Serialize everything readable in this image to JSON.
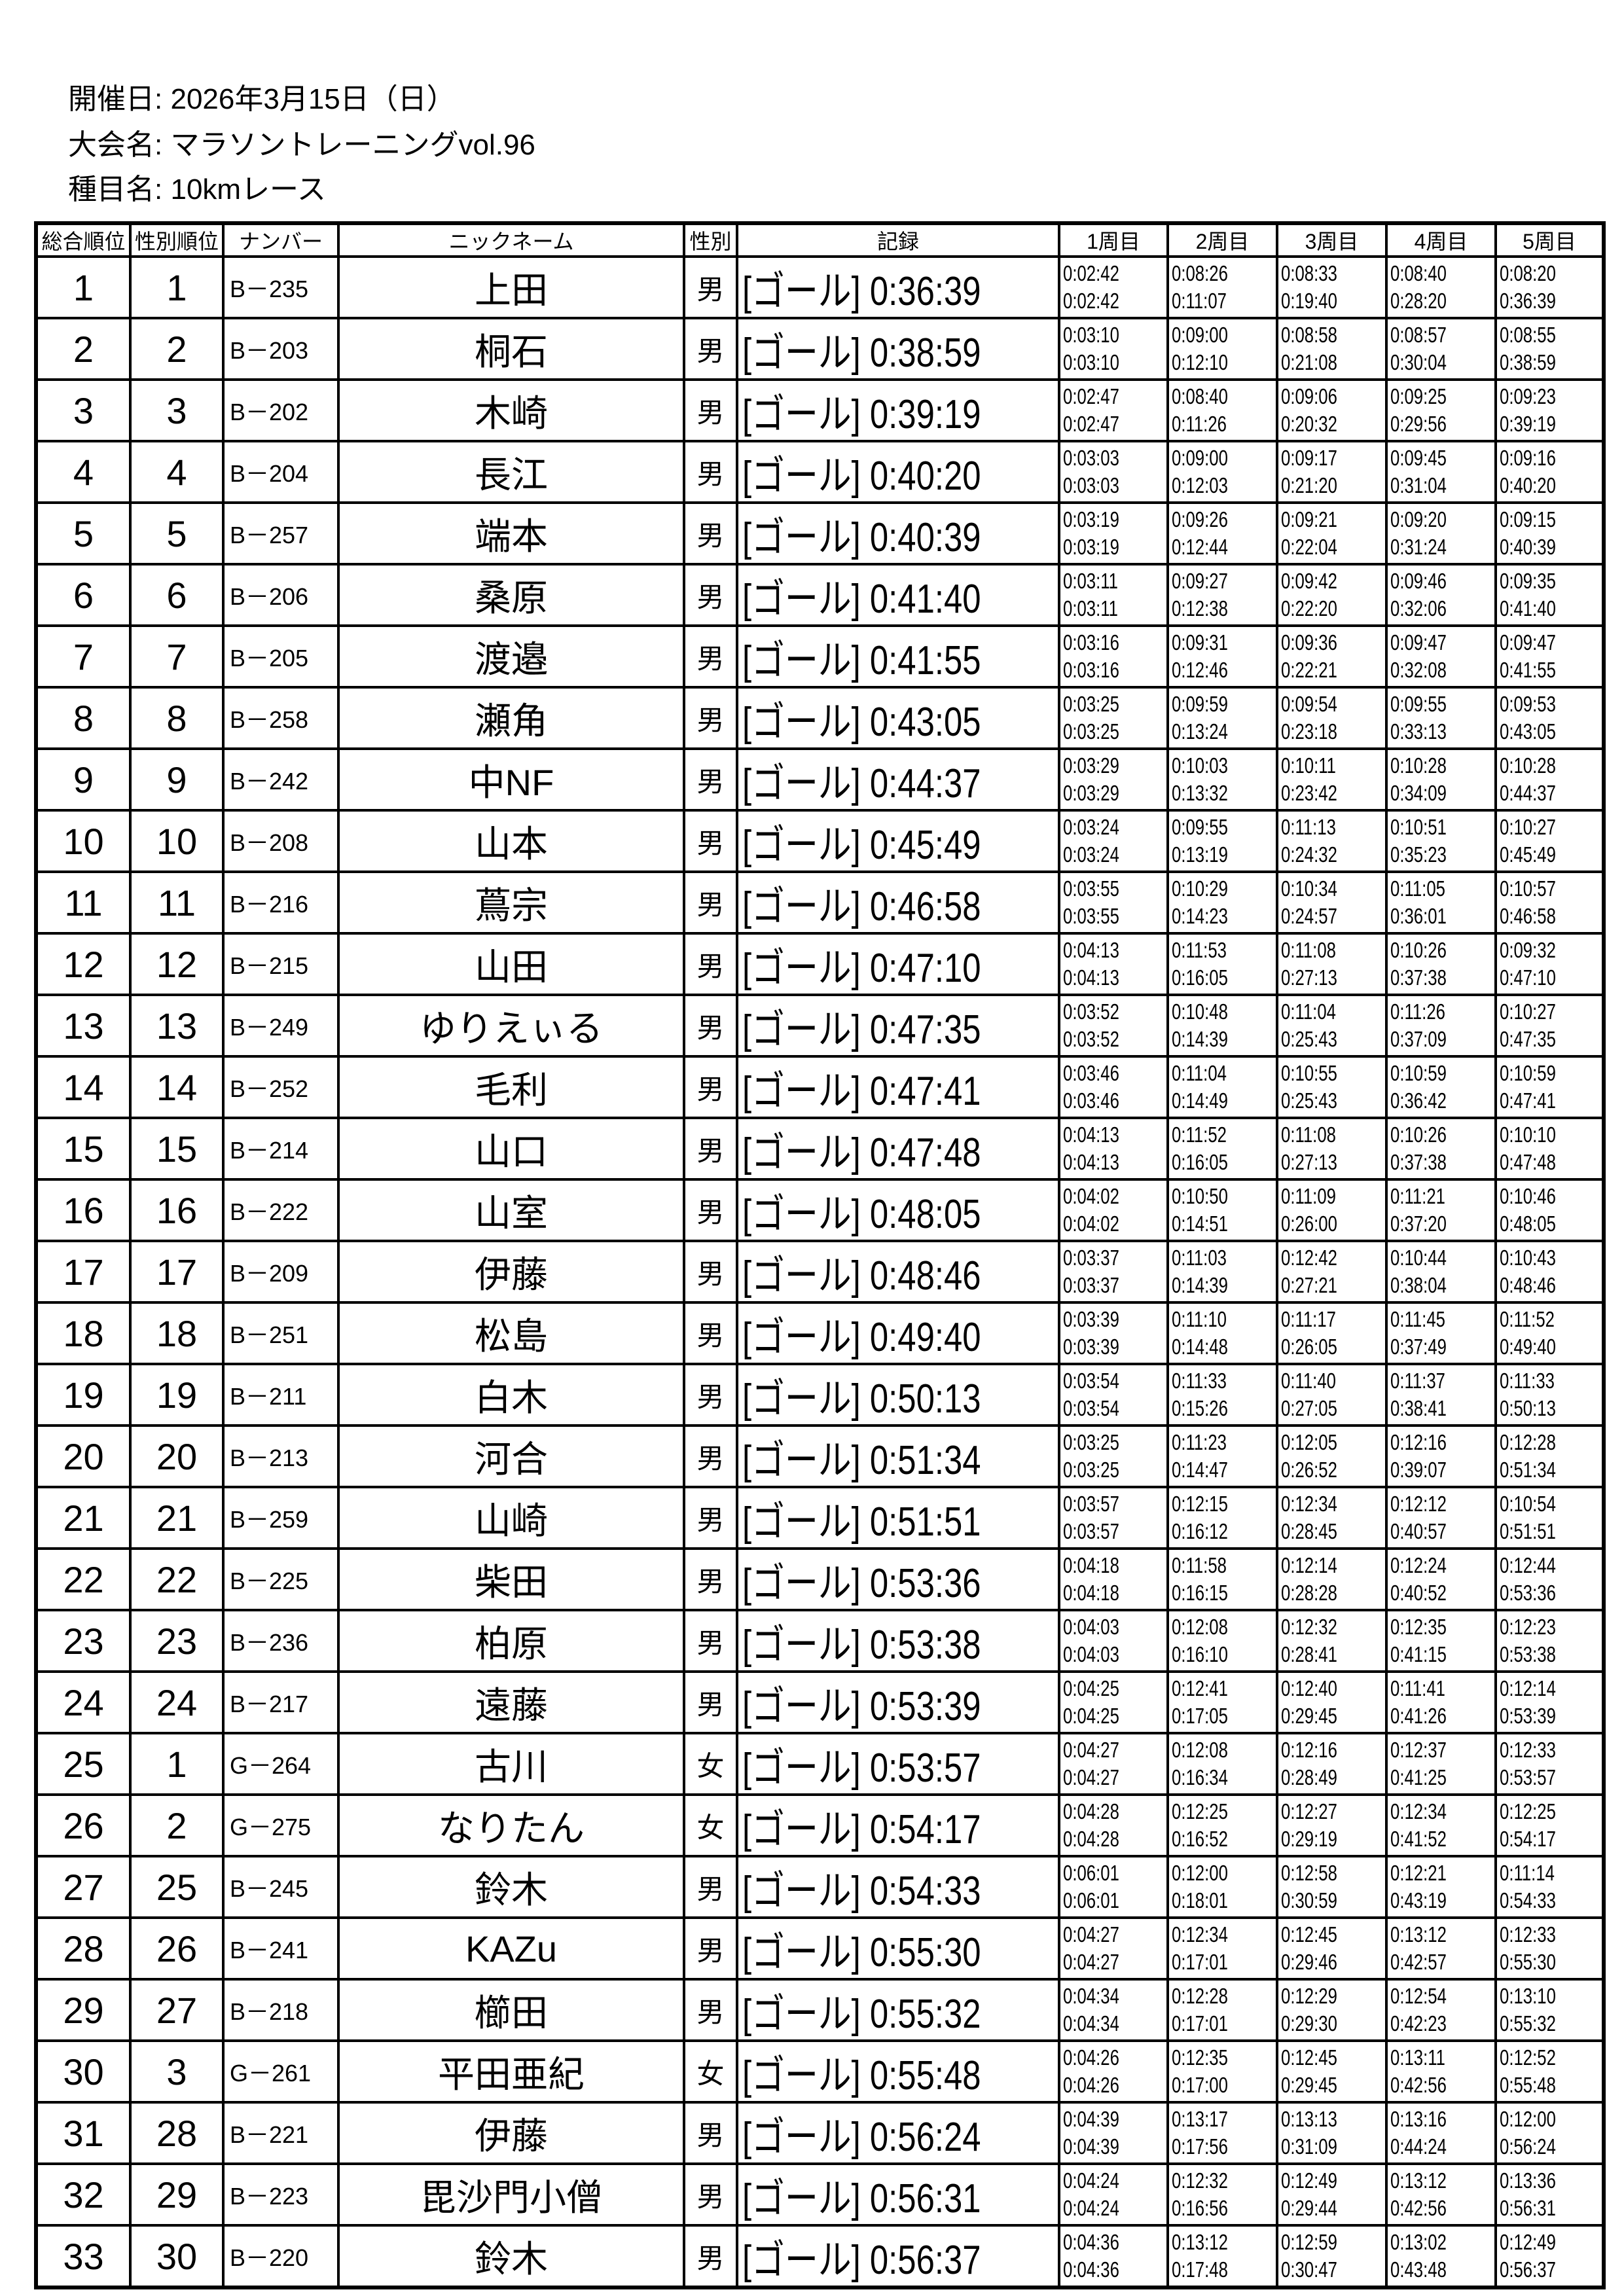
{
  "header": {
    "date_label": "開催日:",
    "date_value": "2026年3月15日（日）",
    "event_label": "大会名:",
    "event_value": "マラソントレーニングvol.96",
    "category_label": "種目名:",
    "category_value": "10kmレース"
  },
  "columns": [
    "総合順位",
    "性別順位",
    "ナンバー",
    "ニックネーム",
    "性別",
    "記録",
    "1周目",
    "2周目",
    "3周目",
    "4周目",
    "5周目"
  ],
  "goal_status": "[ゴール]",
  "rows": [
    {
      "overall": "1",
      "gender_rank": "1",
      "bib": "B－235",
      "name": "上田",
      "sex": "男",
      "time": "0:36:39",
      "laps": [
        [
          "0:02:42",
          "0:02:42"
        ],
        [
          "0:08:26",
          "0:11:07"
        ],
        [
          "0:08:33",
          "0:19:40"
        ],
        [
          "0:08:40",
          "0:28:20"
        ],
        [
          "0:08:20",
          "0:36:39"
        ]
      ]
    },
    {
      "overall": "2",
      "gender_rank": "2",
      "bib": "B－203",
      "name": "桐石",
      "sex": "男",
      "time": "0:38:59",
      "laps": [
        [
          "0:03:10",
          "0:03:10"
        ],
        [
          "0:09:00",
          "0:12:10"
        ],
        [
          "0:08:58",
          "0:21:08"
        ],
        [
          "0:08:57",
          "0:30:04"
        ],
        [
          "0:08:55",
          "0:38:59"
        ]
      ]
    },
    {
      "overall": "3",
      "gender_rank": "3",
      "bib": "B－202",
      "name": "木崎",
      "sex": "男",
      "time": "0:39:19",
      "laps": [
        [
          "0:02:47",
          "0:02:47"
        ],
        [
          "0:08:40",
          "0:11:26"
        ],
        [
          "0:09:06",
          "0:20:32"
        ],
        [
          "0:09:25",
          "0:29:56"
        ],
        [
          "0:09:23",
          "0:39:19"
        ]
      ]
    },
    {
      "overall": "4",
      "gender_rank": "4",
      "bib": "B－204",
      "name": "長江",
      "sex": "男",
      "time": "0:40:20",
      "laps": [
        [
          "0:03:03",
          "0:03:03"
        ],
        [
          "0:09:00",
          "0:12:03"
        ],
        [
          "0:09:17",
          "0:21:20"
        ],
        [
          "0:09:45",
          "0:31:04"
        ],
        [
          "0:09:16",
          "0:40:20"
        ]
      ]
    },
    {
      "overall": "5",
      "gender_rank": "5",
      "bib": "B－257",
      "name": "端本",
      "sex": "男",
      "time": "0:40:39",
      "laps": [
        [
          "0:03:19",
          "0:03:19"
        ],
        [
          "0:09:26",
          "0:12:44"
        ],
        [
          "0:09:21",
          "0:22:04"
        ],
        [
          "0:09:20",
          "0:31:24"
        ],
        [
          "0:09:15",
          "0:40:39"
        ]
      ]
    },
    {
      "overall": "6",
      "gender_rank": "6",
      "bib": "B－206",
      "name": "桑原",
      "sex": "男",
      "time": "0:41:40",
      "laps": [
        [
          "0:03:11",
          "0:03:11"
        ],
        [
          "0:09:27",
          "0:12:38"
        ],
        [
          "0:09:42",
          "0:22:20"
        ],
        [
          "0:09:46",
          "0:32:06"
        ],
        [
          "0:09:35",
          "0:41:40"
        ]
      ]
    },
    {
      "overall": "7",
      "gender_rank": "7",
      "bib": "B－205",
      "name": "渡邉",
      "sex": "男",
      "time": "0:41:55",
      "laps": [
        [
          "0:03:16",
          "0:03:16"
        ],
        [
          "0:09:31",
          "0:12:46"
        ],
        [
          "0:09:36",
          "0:22:21"
        ],
        [
          "0:09:47",
          "0:32:08"
        ],
        [
          "0:09:47",
          "0:41:55"
        ]
      ]
    },
    {
      "overall": "8",
      "gender_rank": "8",
      "bib": "B－258",
      "name": "瀬角",
      "sex": "男",
      "time": "0:43:05",
      "laps": [
        [
          "0:03:25",
          "0:03:25"
        ],
        [
          "0:09:59",
          "0:13:24"
        ],
        [
          "0:09:54",
          "0:23:18"
        ],
        [
          "0:09:55",
          "0:33:13"
        ],
        [
          "0:09:53",
          "0:43:05"
        ]
      ]
    },
    {
      "overall": "9",
      "gender_rank": "9",
      "bib": "B－242",
      "name": "中NF",
      "sex": "男",
      "time": "0:44:37",
      "laps": [
        [
          "0:03:29",
          "0:03:29"
        ],
        [
          "0:10:03",
          "0:13:32"
        ],
        [
          "0:10:11",
          "0:23:42"
        ],
        [
          "0:10:28",
          "0:34:09"
        ],
        [
          "0:10:28",
          "0:44:37"
        ]
      ]
    },
    {
      "overall": "10",
      "gender_rank": "10",
      "bib": "B－208",
      "name": "山本",
      "sex": "男",
      "time": "0:45:49",
      "laps": [
        [
          "0:03:24",
          "0:03:24"
        ],
        [
          "0:09:55",
          "0:13:19"
        ],
        [
          "0:11:13",
          "0:24:32"
        ],
        [
          "0:10:51",
          "0:35:23"
        ],
        [
          "0:10:27",
          "0:45:49"
        ]
      ]
    },
    {
      "overall": "11",
      "gender_rank": "11",
      "bib": "B－216",
      "name": "蔦宗",
      "sex": "男",
      "time": "0:46:58",
      "laps": [
        [
          "0:03:55",
          "0:03:55"
        ],
        [
          "0:10:29",
          "0:14:23"
        ],
        [
          "0:10:34",
          "0:24:57"
        ],
        [
          "0:11:05",
          "0:36:01"
        ],
        [
          "0:10:57",
          "0:46:58"
        ]
      ]
    },
    {
      "overall": "12",
      "gender_rank": "12",
      "bib": "B－215",
      "name": "山田",
      "sex": "男",
      "time": "0:47:10",
      "laps": [
        [
          "0:04:13",
          "0:04:13"
        ],
        [
          "0:11:53",
          "0:16:05"
        ],
        [
          "0:11:08",
          "0:27:13"
        ],
        [
          "0:10:26",
          "0:37:38"
        ],
        [
          "0:09:32",
          "0:47:10"
        ]
      ]
    },
    {
      "overall": "13",
      "gender_rank": "13",
      "bib": "B－249",
      "name": "ゆりえぃる",
      "sex": "男",
      "time": "0:47:35",
      "laps": [
        [
          "0:03:52",
          "0:03:52"
        ],
        [
          "0:10:48",
          "0:14:39"
        ],
        [
          "0:11:04",
          "0:25:43"
        ],
        [
          "0:11:26",
          "0:37:09"
        ],
        [
          "0:10:27",
          "0:47:35"
        ]
      ]
    },
    {
      "overall": "14",
      "gender_rank": "14",
      "bib": "B－252",
      "name": "毛利",
      "sex": "男",
      "time": "0:47:41",
      "laps": [
        [
          "0:03:46",
          "0:03:46"
        ],
        [
          "0:11:04",
          "0:14:49"
        ],
        [
          "0:10:55",
          "0:25:43"
        ],
        [
          "0:10:59",
          "0:36:42"
        ],
        [
          "0:10:59",
          "0:47:41"
        ]
      ]
    },
    {
      "overall": "15",
      "gender_rank": "15",
      "bib": "B－214",
      "name": "山口",
      "sex": "男",
      "time": "0:47:48",
      "laps": [
        [
          "0:04:13",
          "0:04:13"
        ],
        [
          "0:11:52",
          "0:16:05"
        ],
        [
          "0:11:08",
          "0:27:13"
        ],
        [
          "0:10:26",
          "0:37:38"
        ],
        [
          "0:10:10",
          "0:47:48"
        ]
      ]
    },
    {
      "overall": "16",
      "gender_rank": "16",
      "bib": "B－222",
      "name": "山室",
      "sex": "男",
      "time": "0:48:05",
      "laps": [
        [
          "0:04:02",
          "0:04:02"
        ],
        [
          "0:10:50",
          "0:14:51"
        ],
        [
          "0:11:09",
          "0:26:00"
        ],
        [
          "0:11:21",
          "0:37:20"
        ],
        [
          "0:10:46",
          "0:48:05"
        ]
      ]
    },
    {
      "overall": "17",
      "gender_rank": "17",
      "bib": "B－209",
      "name": "伊藤",
      "sex": "男",
      "time": "0:48:46",
      "laps": [
        [
          "0:03:37",
          "0:03:37"
        ],
        [
          "0:11:03",
          "0:14:39"
        ],
        [
          "0:12:42",
          "0:27:21"
        ],
        [
          "0:10:44",
          "0:38:04"
        ],
        [
          "0:10:43",
          "0:48:46"
        ]
      ]
    },
    {
      "overall": "18",
      "gender_rank": "18",
      "bib": "B－251",
      "name": "松島",
      "sex": "男",
      "time": "0:49:40",
      "laps": [
        [
          "0:03:39",
          "0:03:39"
        ],
        [
          "0:11:10",
          "0:14:48"
        ],
        [
          "0:11:17",
          "0:26:05"
        ],
        [
          "0:11:45",
          "0:37:49"
        ],
        [
          "0:11:52",
          "0:49:40"
        ]
      ]
    },
    {
      "overall": "19",
      "gender_rank": "19",
      "bib": "B－211",
      "name": "白木",
      "sex": "男",
      "time": "0:50:13",
      "laps": [
        [
          "0:03:54",
          "0:03:54"
        ],
        [
          "0:11:33",
          "0:15:26"
        ],
        [
          "0:11:40",
          "0:27:05"
        ],
        [
          "0:11:37",
          "0:38:41"
        ],
        [
          "0:11:33",
          "0:50:13"
        ]
      ]
    },
    {
      "overall": "20",
      "gender_rank": "20",
      "bib": "B－213",
      "name": "河合",
      "sex": "男",
      "time": "0:51:34",
      "laps": [
        [
          "0:03:25",
          "0:03:25"
        ],
        [
          "0:11:23",
          "0:14:47"
        ],
        [
          "0:12:05",
          "0:26:52"
        ],
        [
          "0:12:16",
          "0:39:07"
        ],
        [
          "0:12:28",
          "0:51:34"
        ]
      ]
    },
    {
      "overall": "21",
      "gender_rank": "21",
      "bib": "B－259",
      "name": "山崎",
      "sex": "男",
      "time": "0:51:51",
      "laps": [
        [
          "0:03:57",
          "0:03:57"
        ],
        [
          "0:12:15",
          "0:16:12"
        ],
        [
          "0:12:34",
          "0:28:45"
        ],
        [
          "0:12:12",
          "0:40:57"
        ],
        [
          "0:10:54",
          "0:51:51"
        ]
      ]
    },
    {
      "overall": "22",
      "gender_rank": "22",
      "bib": "B－225",
      "name": "柴田",
      "sex": "男",
      "time": "0:53:36",
      "laps": [
        [
          "0:04:18",
          "0:04:18"
        ],
        [
          "0:11:58",
          "0:16:15"
        ],
        [
          "0:12:14",
          "0:28:28"
        ],
        [
          "0:12:24",
          "0:40:52"
        ],
        [
          "0:12:44",
          "0:53:36"
        ]
      ]
    },
    {
      "overall": "23",
      "gender_rank": "23",
      "bib": "B－236",
      "name": "柏原",
      "sex": "男",
      "time": "0:53:38",
      "laps": [
        [
          "0:04:03",
          "0:04:03"
        ],
        [
          "0:12:08",
          "0:16:10"
        ],
        [
          "0:12:32",
          "0:28:41"
        ],
        [
          "0:12:35",
          "0:41:15"
        ],
        [
          "0:12:23",
          "0:53:38"
        ]
      ]
    },
    {
      "overall": "24",
      "gender_rank": "24",
      "bib": "B－217",
      "name": "遠藤",
      "sex": "男",
      "time": "0:53:39",
      "laps": [
        [
          "0:04:25",
          "0:04:25"
        ],
        [
          "0:12:41",
          "0:17:05"
        ],
        [
          "0:12:40",
          "0:29:45"
        ],
        [
          "0:11:41",
          "0:41:26"
        ],
        [
          "0:12:14",
          "0:53:39"
        ]
      ]
    },
    {
      "overall": "25",
      "gender_rank": "1",
      "bib": "G－264",
      "name": "古川",
      "sex": "女",
      "time": "0:53:57",
      "laps": [
        [
          "0:04:27",
          "0:04:27"
        ],
        [
          "0:12:08",
          "0:16:34"
        ],
        [
          "0:12:16",
          "0:28:49"
        ],
        [
          "0:12:37",
          "0:41:25"
        ],
        [
          "0:12:33",
          "0:53:57"
        ]
      ]
    },
    {
      "overall": "26",
      "gender_rank": "2",
      "bib": "G－275",
      "name": "なりたん",
      "sex": "女",
      "time": "0:54:17",
      "laps": [
        [
          "0:04:28",
          "0:04:28"
        ],
        [
          "0:12:25",
          "0:16:52"
        ],
        [
          "0:12:27",
          "0:29:19"
        ],
        [
          "0:12:34",
          "0:41:52"
        ],
        [
          "0:12:25",
          "0:54:17"
        ]
      ]
    },
    {
      "overall": "27",
      "gender_rank": "25",
      "bib": "B－245",
      "name": "鈴木",
      "sex": "男",
      "time": "0:54:33",
      "laps": [
        [
          "0:06:01",
          "0:06:01"
        ],
        [
          "0:12:00",
          "0:18:01"
        ],
        [
          "0:12:58",
          "0:30:59"
        ],
        [
          "0:12:21",
          "0:43:19"
        ],
        [
          "0:11:14",
          "0:54:33"
        ]
      ]
    },
    {
      "overall": "28",
      "gender_rank": "26",
      "bib": "B－241",
      "name": "KAZu",
      "sex": "男",
      "time": "0:55:30",
      "laps": [
        [
          "0:04:27",
          "0:04:27"
        ],
        [
          "0:12:34",
          "0:17:01"
        ],
        [
          "0:12:45",
          "0:29:46"
        ],
        [
          "0:13:12",
          "0:42:57"
        ],
        [
          "0:12:33",
          "0:55:30"
        ]
      ]
    },
    {
      "overall": "29",
      "gender_rank": "27",
      "bib": "B－218",
      "name": "櫛田",
      "sex": "男",
      "time": "0:55:32",
      "laps": [
        [
          "0:04:34",
          "0:04:34"
        ],
        [
          "0:12:28",
          "0:17:01"
        ],
        [
          "0:12:29",
          "0:29:30"
        ],
        [
          "0:12:54",
          "0:42:23"
        ],
        [
          "0:13:10",
          "0:55:32"
        ]
      ]
    },
    {
      "overall": "30",
      "gender_rank": "3",
      "bib": "G－261",
      "name": "平田亜紀",
      "sex": "女",
      "time": "0:55:48",
      "laps": [
        [
          "0:04:26",
          "0:04:26"
        ],
        [
          "0:12:35",
          "0:17:00"
        ],
        [
          "0:12:45",
          "0:29:45"
        ],
        [
          "0:13:11",
          "0:42:56"
        ],
        [
          "0:12:52",
          "0:55:48"
        ]
      ]
    },
    {
      "overall": "31",
      "gender_rank": "28",
      "bib": "B－221",
      "name": "伊藤",
      "sex": "男",
      "time": "0:56:24",
      "laps": [
        [
          "0:04:39",
          "0:04:39"
        ],
        [
          "0:13:17",
          "0:17:56"
        ],
        [
          "0:13:13",
          "0:31:09"
        ],
        [
          "0:13:16",
          "0:44:24"
        ],
        [
          "0:12:00",
          "0:56:24"
        ]
      ]
    },
    {
      "overall": "32",
      "gender_rank": "29",
      "bib": "B－223",
      "name": "毘沙門小僧",
      "sex": "男",
      "time": "0:56:31",
      "laps": [
        [
          "0:04:24",
          "0:04:24"
        ],
        [
          "0:12:32",
          "0:16:56"
        ],
        [
          "0:12:49",
          "0:29:44"
        ],
        [
          "0:13:12",
          "0:42:56"
        ],
        [
          "0:13:36",
          "0:56:31"
        ]
      ]
    },
    {
      "overall": "33",
      "gender_rank": "30",
      "bib": "B－220",
      "name": "鈴木",
      "sex": "男",
      "time": "0:56:37",
      "laps": [
        [
          "0:04:36",
          "0:04:36"
        ],
        [
          "0:13:12",
          "0:17:48"
        ],
        [
          "0:12:59",
          "0:30:47"
        ],
        [
          "0:13:02",
          "0:43:48"
        ],
        [
          "0:12:49",
          "0:56:37"
        ]
      ]
    }
  ]
}
